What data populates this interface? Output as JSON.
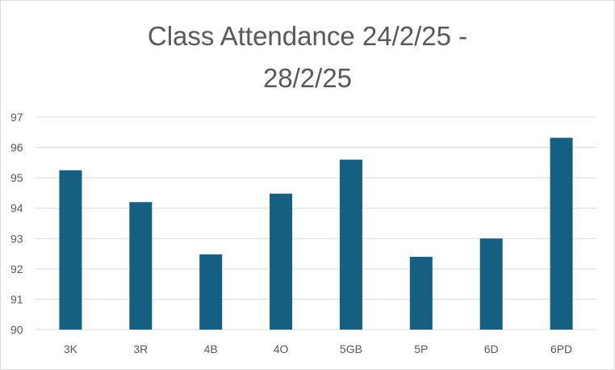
{
  "chart_data": {
    "type": "bar",
    "title_lines": [
      "Class Attendance 24/2/25 -",
      "28/2/25"
    ],
    "xlabel": "",
    "ylabel": "",
    "categories": [
      "3K",
      "3R",
      "4B",
      "4O",
      "5GB",
      "5P",
      "6D",
      "6PD"
    ],
    "series": [
      {
        "values": [
          95.25,
          94.2,
          92.48,
          94.48,
          95.6,
          92.4,
          93.0,
          96.32
        ]
      }
    ],
    "ylim": [
      90,
      97
    ],
    "yticks": [
      90,
      91,
      92,
      93,
      94,
      95,
      96,
      97
    ],
    "grid": true,
    "legend": "none",
    "bar_color": "#156082",
    "grid_color": "#d9d9d9",
    "text_color": "#595959"
  }
}
